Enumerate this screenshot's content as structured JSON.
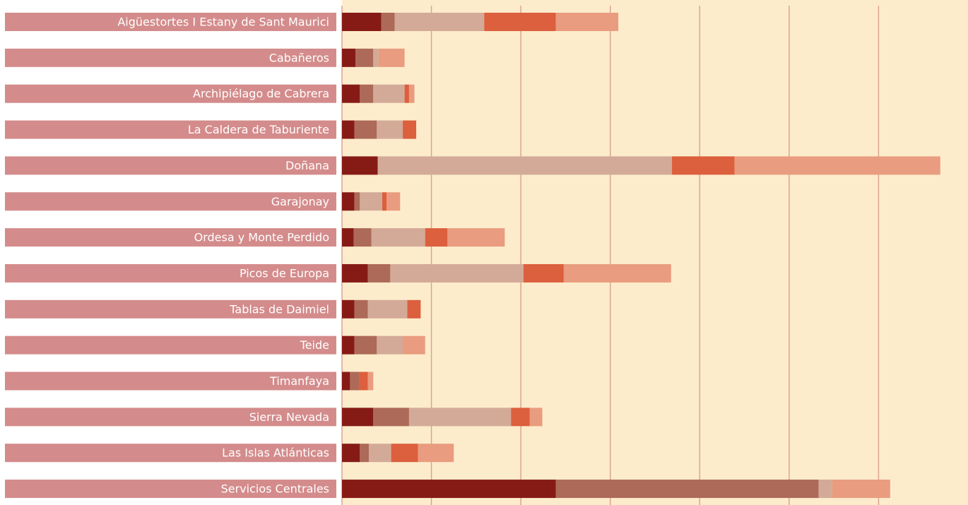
{
  "chart_data": {
    "type": "stacked-bar-horizontal",
    "categories": [
      "Aigüestortes I Estany de Sant Maurici",
      "Cabañeros",
      "Archipiélago de Cabrera",
      "La Caldera de Taburiente",
      "Doñana",
      "Garajonay",
      "Ordesa y Monte Perdido",
      "Picos de Europa",
      "Tablas de Daimiel",
      "Teide",
      "Timanfaya",
      "Sierra Nevada",
      "Las Islas Atlánticas",
      "Servicios Centrales"
    ],
    "series": [
      {
        "color": "#861b16",
        "values": [
          0.44,
          0.15,
          0.2,
          0.14,
          0.4,
          0.14,
          0.13,
          0.29,
          0.14,
          0.14,
          0.09,
          0.35,
          0.2,
          2.39
        ]
      },
      {
        "color": "#ad6a58",
        "values": [
          0.15,
          0.2,
          0.15,
          0.25,
          0,
          0.06,
          0.2,
          0.25,
          0.15,
          0.25,
          0.1,
          0.4,
          0.1,
          2.94
        ]
      },
      {
        "color": "#d3aa98",
        "values": [
          1.0,
          0.06,
          0.35,
          0.29,
          3.29,
          0.25,
          0.6,
          1.49,
          0.44,
          0.29,
          0,
          1.14,
          0.25,
          0.15
        ]
      },
      {
        "color": "#dc5f3e",
        "values": [
          0.8,
          0,
          0.05,
          0.15,
          0.7,
          0.05,
          0.25,
          0.45,
          0.15,
          0,
          0.1,
          0.21,
          0.3,
          0
        ]
      },
      {
        "color": "#e99c7f",
        "values": [
          0.7,
          0.29,
          0.06,
          0,
          2.3,
          0.15,
          0.64,
          1.2,
          0,
          0.25,
          0.06,
          0.14,
          0.4,
          0.65
        ]
      }
    ],
    "xlim": [
      0,
      7
    ],
    "xticks": [
      0,
      1,
      2,
      3,
      4,
      5,
      6
    ],
    "grid": true,
    "label_color": "#d48b8b",
    "background": "#fdeccc",
    "grid_color": "#daa592"
  }
}
